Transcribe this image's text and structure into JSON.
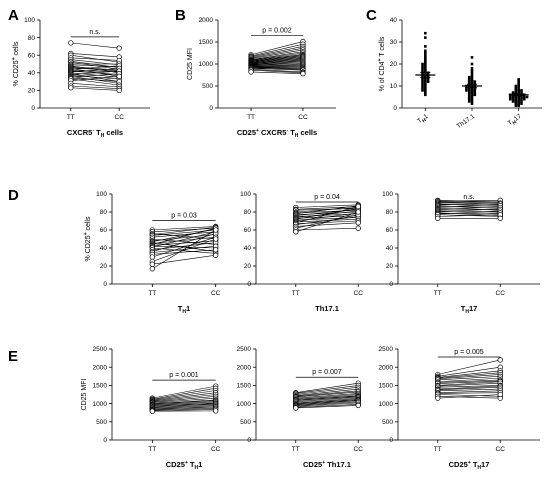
{
  "figure": {
    "panel_letters": [
      "A",
      "B",
      "C",
      "D",
      "E"
    ],
    "y_titles": {
      "pct_cd25": [
        "% CD25",
        "+",
        " cells"
      ],
      "cd25_mfi": "CD25 MFI",
      "pct_cd4": [
        "% of CD4",
        "+",
        " T cells"
      ]
    },
    "x_titles": {
      "A": [
        "CXCR5",
        "-",
        " T",
        "H",
        " cells"
      ],
      "B": [
        "CD25",
        "+",
        " CXCR5",
        "-",
        " T",
        "H",
        " cells"
      ],
      "D1": [
        "T",
        "H",
        "1"
      ],
      "D2": [
        "Th17.1"
      ],
      "D3": [
        "T",
        "H",
        "17"
      ],
      "E1": [
        "CD25",
        "+",
        " T",
        "H",
        "1"
      ],
      "E2": [
        "CD25",
        "+",
        " Th17.1"
      ],
      "E3": [
        "CD25",
        "+",
        " T",
        "H",
        "17"
      ]
    },
    "c_categories": [
      [
        "T",
        "H",
        "1"
      ],
      [
        "Th17.1",
        "",
        ""
      ],
      [
        "T",
        "H",
        "17"
      ]
    ]
  },
  "chart_data": [
    {
      "id": "A",
      "type": "line",
      "subtype": "paired-before-after",
      "categories": [
        "TT",
        "CC"
      ],
      "ylim": [
        0,
        100
      ],
      "yticks": [
        0,
        20,
        40,
        60,
        80,
        100
      ],
      "annotation": "n.s.",
      "pairs": [
        [
          74,
          68
        ],
        [
          62,
          58
        ],
        [
          60,
          52
        ],
        [
          57,
          54
        ],
        [
          55,
          49
        ],
        [
          53,
          46
        ],
        [
          52,
          44
        ],
        [
          50,
          50
        ],
        [
          49,
          47
        ],
        [
          48,
          40
        ],
        [
          47,
          43
        ],
        [
          46,
          42
        ],
        [
          45,
          36
        ],
        [
          44,
          48
        ],
        [
          43,
          41
        ],
        [
          42,
          38
        ],
        [
          41,
          45
        ],
        [
          40,
          35
        ],
        [
          39,
          30
        ],
        [
          38,
          42
        ],
        [
          37,
          33
        ],
        [
          36,
          28
        ],
        [
          35,
          39
        ],
        [
          34,
          30
        ],
        [
          33,
          26
        ],
        [
          31,
          36
        ],
        [
          28,
          24
        ],
        [
          25,
          22
        ],
        [
          23,
          20
        ]
      ]
    },
    {
      "id": "B",
      "type": "line",
      "subtype": "paired-before-after",
      "categories": [
        "TT",
        "CC"
      ],
      "ylim": [
        0,
        2000
      ],
      "yticks": [
        0,
        500,
        1000,
        1500,
        2000
      ],
      "annotation": "p = 0.002",
      "pairs": [
        [
          1210,
          1510
        ],
        [
          1180,
          1450
        ],
        [
          1160,
          1400
        ],
        [
          1140,
          1360
        ],
        [
          1120,
          1320
        ],
        [
          1100,
          1280
        ],
        [
          1090,
          1250
        ],
        [
          1080,
          1220
        ],
        [
          1070,
          1200
        ],
        [
          1060,
          1180
        ],
        [
          1050,
          1160
        ],
        [
          1040,
          1140
        ],
        [
          1030,
          1120
        ],
        [
          1020,
          1100
        ],
        [
          1010,
          1080
        ],
        [
          1000,
          1060
        ],
        [
          990,
          1040
        ],
        [
          980,
          1020
        ],
        [
          970,
          1000
        ],
        [
          960,
          980
        ],
        [
          950,
          960
        ],
        [
          940,
          940
        ],
        [
          930,
          920
        ],
        [
          920,
          900
        ],
        [
          910,
          880
        ],
        [
          900,
          860
        ],
        [
          880,
          820
        ],
        [
          860,
          800
        ],
        [
          820,
          780
        ]
      ]
    },
    {
      "id": "C",
      "type": "scatter",
      "subtype": "dot-plot-mean-sem",
      "categories": [
        "TH1",
        "Th17.1",
        "TH17"
      ],
      "ylim": [
        0,
        40
      ],
      "yticks": [
        0,
        10,
        20,
        30,
        40
      ],
      "groups": [
        {
          "mean": 15,
          "sem": 1.2,
          "values": [
            34,
            32,
            28,
            26,
            25,
            24,
            23,
            22,
            21,
            20,
            20,
            19,
            19,
            18,
            18,
            17,
            17,
            16,
            16,
            16,
            15,
            15,
            15,
            14,
            14,
            14,
            13,
            13,
            13,
            12,
            12,
            12,
            11,
            11,
            10,
            10,
            9,
            9,
            8,
            8,
            7,
            6
          ]
        },
        {
          "mean": 10,
          "sem": 0.8,
          "values": [
            23,
            20,
            18,
            17,
            16,
            15,
            14,
            14,
            13,
            13,
            12,
            12,
            12,
            11,
            11,
            11,
            10,
            10,
            10,
            10,
            9,
            9,
            9,
            9,
            8,
            8,
            8,
            8,
            7,
            7,
            7,
            6,
            6,
            6,
            5,
            5,
            4,
            4,
            3,
            3,
            2
          ]
        },
        {
          "mean": 6,
          "sem": 0.4,
          "values": [
            13,
            12,
            11,
            10,
            10,
            9,
            9,
            8,
            8,
            8,
            7,
            7,
            7,
            7,
            6,
            6,
            6,
            6,
            6,
            6,
            5,
            5,
            5,
            5,
            5,
            5,
            5,
            4,
            4,
            4,
            4,
            4,
            4,
            3,
            3,
            3,
            3,
            2,
            2,
            2,
            1,
            1
          ]
        }
      ]
    },
    {
      "id": "D1",
      "type": "line",
      "subtype": "paired-before-after",
      "categories": [
        "TT",
        "CC"
      ],
      "ylim": [
        0,
        100
      ],
      "yticks": [
        0,
        20,
        40,
        60,
        80,
        100
      ],
      "annotation": "p = 0.03",
      "pairs": [
        [
          60,
          64
        ],
        [
          58,
          62
        ],
        [
          56,
          50
        ],
        [
          55,
          63
        ],
        [
          54,
          60
        ],
        [
          52,
          58
        ],
        [
          50,
          44
        ],
        [
          48,
          55
        ],
        [
          47,
          61
        ],
        [
          46,
          36
        ],
        [
          45,
          52
        ],
        [
          44,
          62
        ],
        [
          43,
          48
        ],
        [
          42,
          40
        ],
        [
          41,
          58
        ],
        [
          40,
          34
        ],
        [
          38,
          46
        ],
        [
          36,
          56
        ],
        [
          35,
          42
        ],
        [
          33,
          38
        ],
        [
          30,
          52
        ],
        [
          25,
          50
        ],
        [
          22,
          32
        ],
        [
          17,
          60
        ]
      ]
    },
    {
      "id": "D2",
      "type": "line",
      "subtype": "paired-before-after",
      "categories": [
        "TT",
        "CC"
      ],
      "ylim": [
        0,
        100
      ],
      "yticks": [
        0,
        20,
        40,
        60,
        80,
        100
      ],
      "annotation": "p = 0.04",
      "pairs": [
        [
          85,
          88
        ],
        [
          83,
          86
        ],
        [
          82,
          84
        ],
        [
          80,
          85
        ],
        [
          79,
          82
        ],
        [
          78,
          87
        ],
        [
          77,
          80
        ],
        [
          76,
          83
        ],
        [
          75,
          78
        ],
        [
          74,
          81
        ],
        [
          73,
          76
        ],
        [
          72,
          84
        ],
        [
          71,
          74
        ],
        [
          70,
          79
        ],
        [
          69,
          72
        ],
        [
          68,
          86
        ],
        [
          67,
          70
        ],
        [
          66,
          75
        ],
        [
          64,
          68
        ],
        [
          62,
          77
        ],
        [
          60,
          62
        ],
        [
          58,
          80
        ]
      ]
    },
    {
      "id": "D3",
      "type": "line",
      "subtype": "paired-before-after",
      "categories": [
        "TT",
        "CC"
      ],
      "ylim": [
        0,
        100
      ],
      "yticks": [
        0,
        20,
        40,
        60,
        80,
        100
      ],
      "annotation": "n.s.",
      "pairs": [
        [
          93,
          91
        ],
        [
          92,
          93
        ],
        [
          91,
          88
        ],
        [
          90,
          90
        ],
        [
          89,
          86
        ],
        [
          88,
          89
        ],
        [
          87,
          84
        ],
        [
          86,
          87
        ],
        [
          85,
          82
        ],
        [
          84,
          85
        ],
        [
          83,
          80
        ],
        [
          82,
          83
        ],
        [
          81,
          78
        ],
        [
          80,
          81
        ],
        [
          79,
          76
        ],
        [
          78,
          79
        ],
        [
          77,
          75
        ],
        [
          75,
          77
        ],
        [
          73,
          73
        ]
      ]
    },
    {
      "id": "E1",
      "type": "line",
      "subtype": "paired-before-after",
      "categories": [
        "TT",
        "CC"
      ],
      "ylim": [
        0,
        2500
      ],
      "yticks": [
        0,
        500,
        1000,
        1500,
        2000,
        2500
      ],
      "annotation": "p = 0.001",
      "pairs": [
        [
          1150,
          1480
        ],
        [
          1120,
          1420
        ],
        [
          1100,
          1360
        ],
        [
          1080,
          1300
        ],
        [
          1060,
          1250
        ],
        [
          1040,
          1200
        ],
        [
          1020,
          1150
        ],
        [
          1000,
          1100
        ],
        [
          980,
          1080
        ],
        [
          960,
          1050
        ],
        [
          940,
          1020
        ],
        [
          920,
          1000
        ],
        [
          900,
          980
        ],
        [
          880,
          950
        ],
        [
          860,
          920
        ],
        [
          840,
          900
        ],
        [
          820,
          870
        ],
        [
          800,
          840
        ],
        [
          790,
          800
        ]
      ]
    },
    {
      "id": "E2",
      "type": "line",
      "subtype": "paired-before-after",
      "categories": [
        "TT",
        "CC"
      ],
      "ylim": [
        0,
        2500
      ],
      "yticks": [
        0,
        500,
        1000,
        1500,
        2000,
        2500
      ],
      "annotation": "p = 0.007",
      "pairs": [
        [
          1300,
          1560
        ],
        [
          1280,
          1500
        ],
        [
          1250,
          1450
        ],
        [
          1220,
          1400
        ],
        [
          1200,
          1350
        ],
        [
          1180,
          1320
        ],
        [
          1150,
          1280
        ],
        [
          1120,
          1250
        ],
        [
          1100,
          1220
        ],
        [
          1080,
          1200
        ],
        [
          1050,
          1180
        ],
        [
          1020,
          1150
        ],
        [
          1000,
          1120
        ],
        [
          980,
          1100
        ],
        [
          960,
          1080
        ],
        [
          940,
          1050
        ],
        [
          920,
          1020
        ],
        [
          900,
          980
        ],
        [
          880,
          950
        ]
      ]
    },
    {
      "id": "E3",
      "type": "line",
      "subtype": "paired-before-after",
      "categories": [
        "TT",
        "CC"
      ],
      "ylim": [
        0,
        2500
      ],
      "yticks": [
        0,
        500,
        1000,
        1500,
        2000,
        2500
      ],
      "annotation": "p = 0.005",
      "pairs": [
        [
          1800,
          2200
        ],
        [
          1750,
          2000
        ],
        [
          1720,
          1900
        ],
        [
          1700,
          1850
        ],
        [
          1680,
          1800
        ],
        [
          1650,
          1750
        ],
        [
          1600,
          1700
        ],
        [
          1580,
          1650
        ],
        [
          1550,
          1620
        ],
        [
          1500,
          1600
        ],
        [
          1480,
          1560
        ],
        [
          1450,
          1500
        ],
        [
          1400,
          1480
        ],
        [
          1380,
          1450
        ],
        [
          1350,
          1400
        ],
        [
          1300,
          1350
        ],
        [
          1280,
          1300
        ],
        [
          1250,
          1200
        ],
        [
          1200,
          1150
        ],
        [
          1150,
          1250
        ]
      ]
    }
  ]
}
